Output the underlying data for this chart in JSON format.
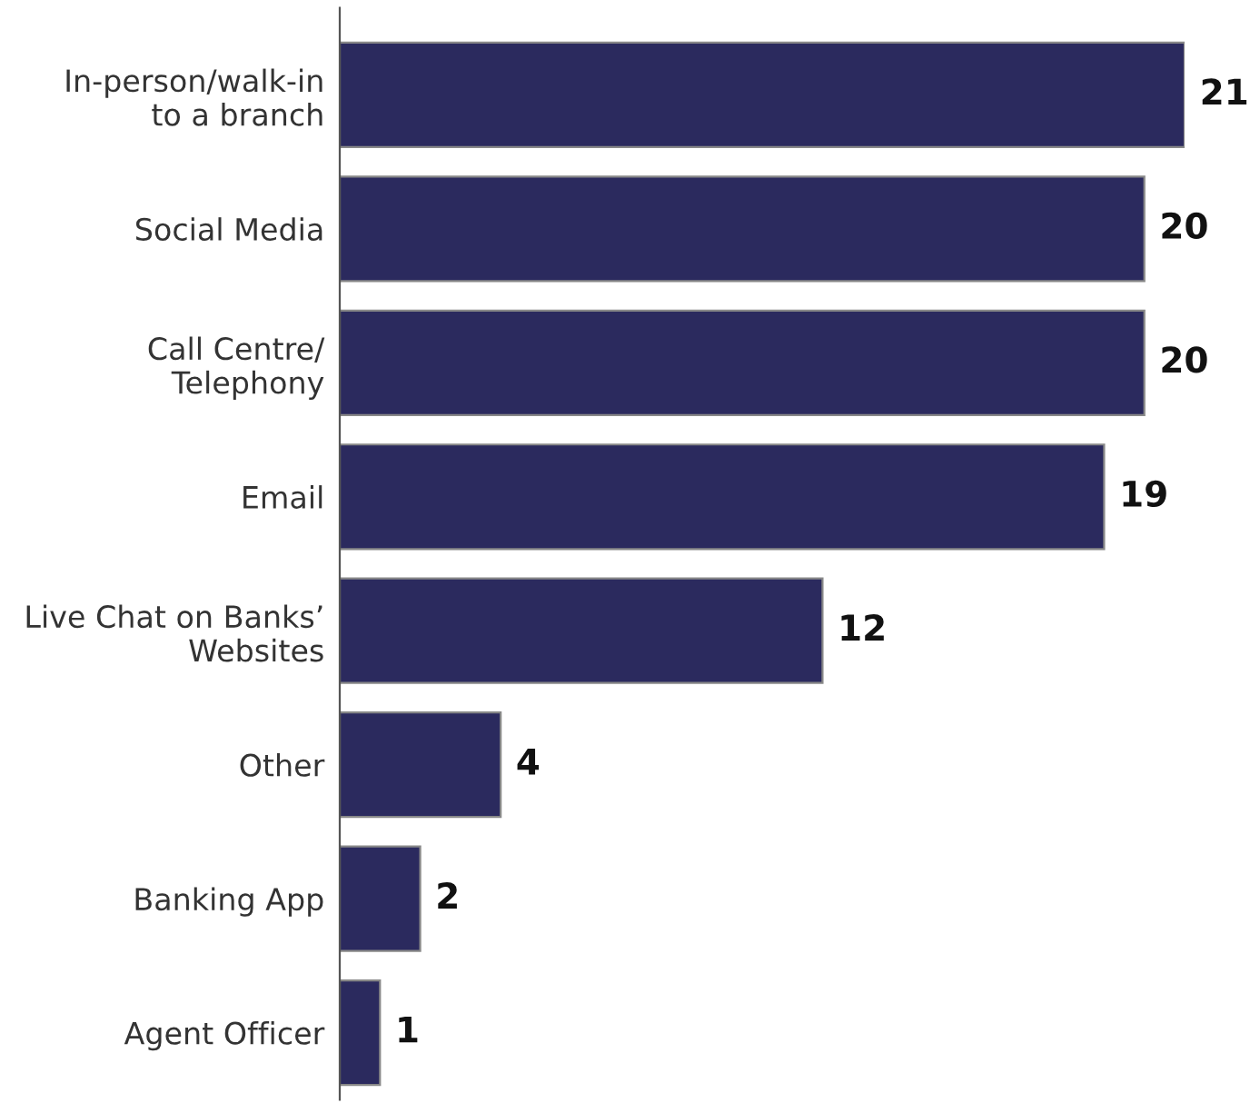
{
  "chart_data": {
    "type": "bar",
    "orientation": "horizontal",
    "categories": [
      "In-person/walk-in\nto a branch",
      "Social Media",
      "Call Centre/\nTelephony",
      "Email",
      "Live Chat on Banks’\nWebsites",
      "Other",
      "Banking App",
      "Agent Officer"
    ],
    "values": [
      21,
      20,
      20,
      19,
      12,
      4,
      2,
      1
    ],
    "color": "#2b2a5e",
    "data_labels": true,
    "grid": false,
    "legend": false
  }
}
